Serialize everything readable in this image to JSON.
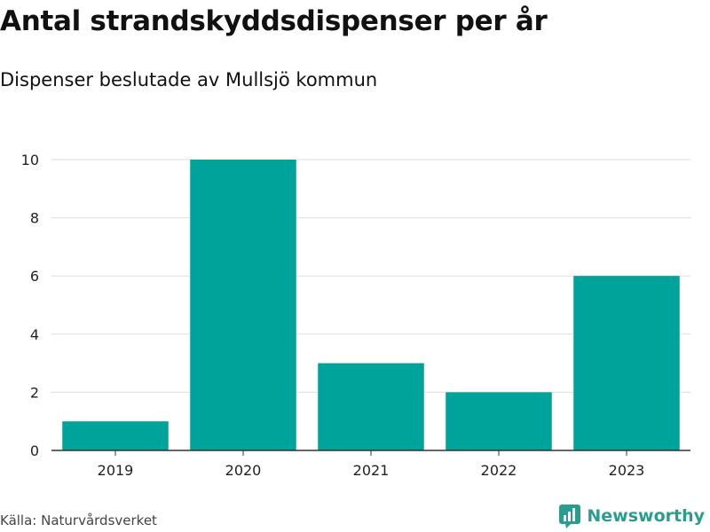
{
  "title": "Antal strandskyddsdispenser per år",
  "subtitle": "Dispenser beslutade av Mullsjö kommun",
  "source": "Källa: Naturvårdsverket",
  "brand": "Newsworthy",
  "colors": {
    "bar": "#00a39a",
    "grid": "#dddddd",
    "axis": "#333333",
    "brand": "#2a9d8f"
  },
  "chart_data": {
    "type": "bar",
    "title": "Antal strandskyddsdispenser per år",
    "subtitle": "Dispenser beslutade av Mullsjö kommun",
    "categories": [
      "2019",
      "2020",
      "2021",
      "2022",
      "2023"
    ],
    "values": [
      1,
      10,
      3,
      2,
      6
    ],
    "xlabel": "",
    "ylabel": "",
    "ylim": [
      0,
      10
    ],
    "yticks": [
      0,
      2,
      4,
      6,
      8,
      10
    ],
    "grid": true,
    "legend": "none"
  }
}
